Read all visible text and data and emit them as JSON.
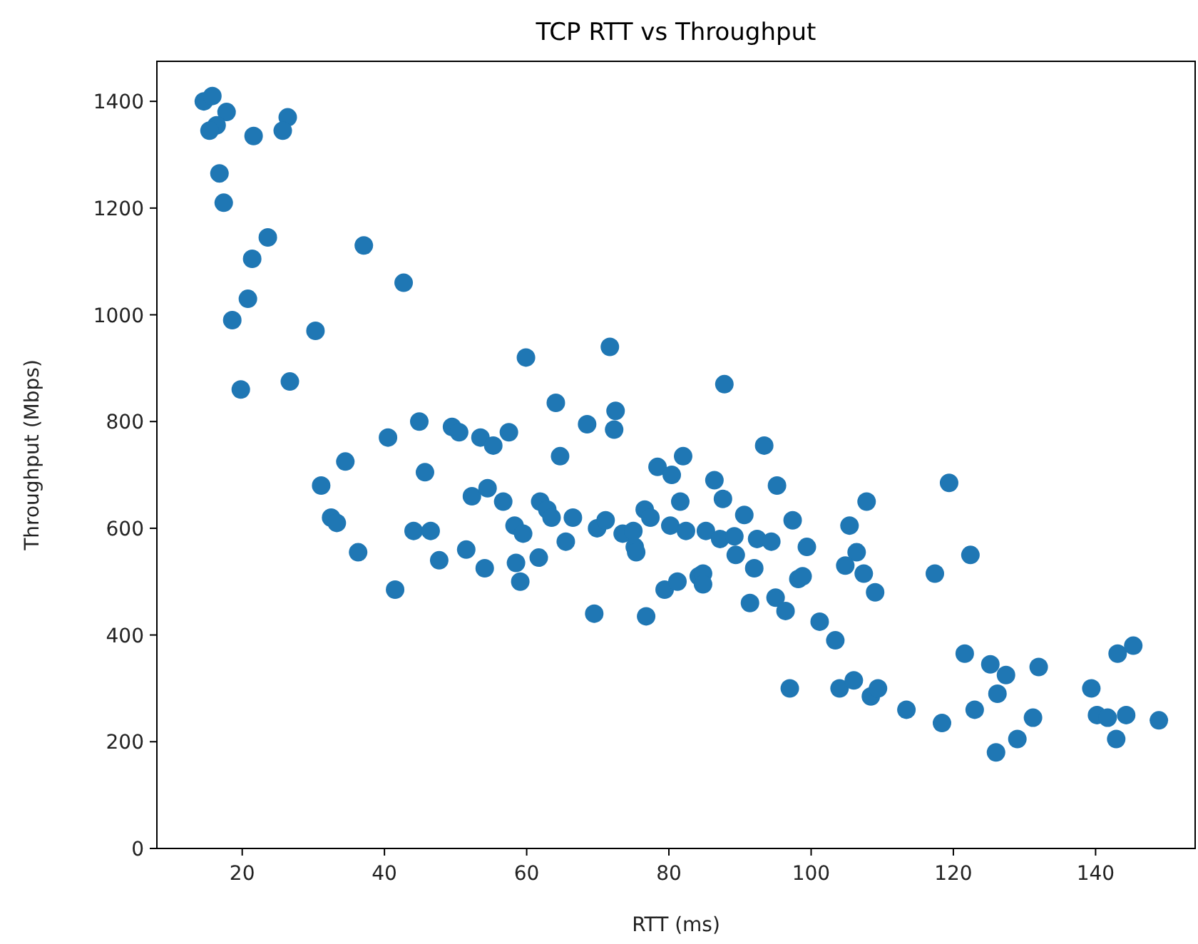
{
  "chart_data": {
    "type": "scatter",
    "title": "TCP RTT vs Throughput",
    "xlabel": "RTT (ms)",
    "ylabel": "Throughput (Mbps)",
    "xlim": [
      8,
      154
    ],
    "ylim": [
      0,
      1475
    ],
    "xticks": [
      20,
      40,
      60,
      80,
      100,
      120,
      140
    ],
    "yticks": [
      0,
      200,
      400,
      600,
      800,
      1000,
      1200,
      1400
    ],
    "marker": "circle",
    "series": [
      {
        "color": "#1f77b4",
        "x": [
          14.6,
          15.8,
          17.8,
          16.4,
          15.4,
          21.6,
          26.4,
          25.7,
          16.8,
          17.4,
          23.6,
          37.1,
          21.4,
          42.7,
          20.8,
          18.6,
          30.3,
          19.8,
          26.7,
          44.9,
          49.5,
          50.5,
          53.5,
          55.3,
          40.5,
          34.5,
          45.7,
          31.1,
          32.5,
          33.3,
          36.3,
          44.1,
          46.5,
          47.7,
          51.5,
          54.1,
          41.5,
          52.3,
          54.5,
          59.9,
          71.7,
          87.8,
          64.1,
          68.5,
          72.5,
          72.3,
          64.7,
          57.5,
          56.7,
          61.9,
          62.9,
          63.5,
          66.5,
          58.3,
          59.5,
          65.5,
          69.9,
          71.1,
          73.5,
          75,
          75.2,
          75.4,
          76.6,
          77.4,
          78.4,
          80.4,
          82,
          81.6,
          80.2,
          82.4,
          85.2,
          87.2,
          89.2,
          86.4,
          87.6,
          89.4,
          90.6,
          92,
          92.4,
          94.4,
          93.4,
          95.2,
          97.4,
          99.4,
          98.2,
          98.8,
          95,
          96.4,
          91.4,
          101.2,
          79.4,
          81.2,
          84.2,
          84.8,
          84.8,
          58.5,
          59.1,
          61.7,
          69.5,
          76.8,
          97,
          107.8,
          105.4,
          119.4,
          106.4,
          104.8,
          107.4,
          109,
          117.4,
          122.4,
          103.4,
          104,
          106,
          108.4,
          109.4,
          113.4,
          118.4,
          121.6,
          125.2,
          127.4,
          132,
          123,
          126.2,
          131.2,
          129,
          126,
          139.4,
          140.2,
          141.7,
          144.3,
          142.9,
          143.1,
          145.3,
          148.9
        ],
        "values": [
          1400,
          1410,
          1380,
          1355,
          1345,
          1335,
          1370,
          1345,
          1265,
          1210,
          1145,
          1130,
          1105,
          1060,
          1030,
          990,
          970,
          860,
          875,
          800,
          790,
          780,
          770,
          755,
          770,
          725,
          705,
          680,
          620,
          610,
          555,
          595,
          595,
          540,
          560,
          525,
          485,
          660,
          675,
          920,
          940,
          870,
          835,
          795,
          820,
          785,
          735,
          780,
          650,
          650,
          635,
          620,
          620,
          605,
          590,
          575,
          600,
          615,
          590,
          595,
          565,
          555,
          635,
          620,
          715,
          700,
          735,
          650,
          605,
          595,
          595,
          580,
          585,
          690,
          655,
          550,
          625,
          525,
          580,
          575,
          755,
          680,
          615,
          565,
          505,
          510,
          470,
          445,
          460,
          425,
          485,
          500,
          510,
          515,
          495,
          535,
          500,
          545,
          440,
          435,
          300,
          650,
          605,
          685,
          555,
          530,
          515,
          480,
          515,
          550,
          390,
          300,
          315,
          285,
          300,
          260,
          235,
          365,
          345,
          325,
          340,
          260,
          290,
          245,
          205,
          180,
          300,
          250,
          245,
          250,
          205,
          365,
          380,
          240
        ]
      }
    ]
  }
}
